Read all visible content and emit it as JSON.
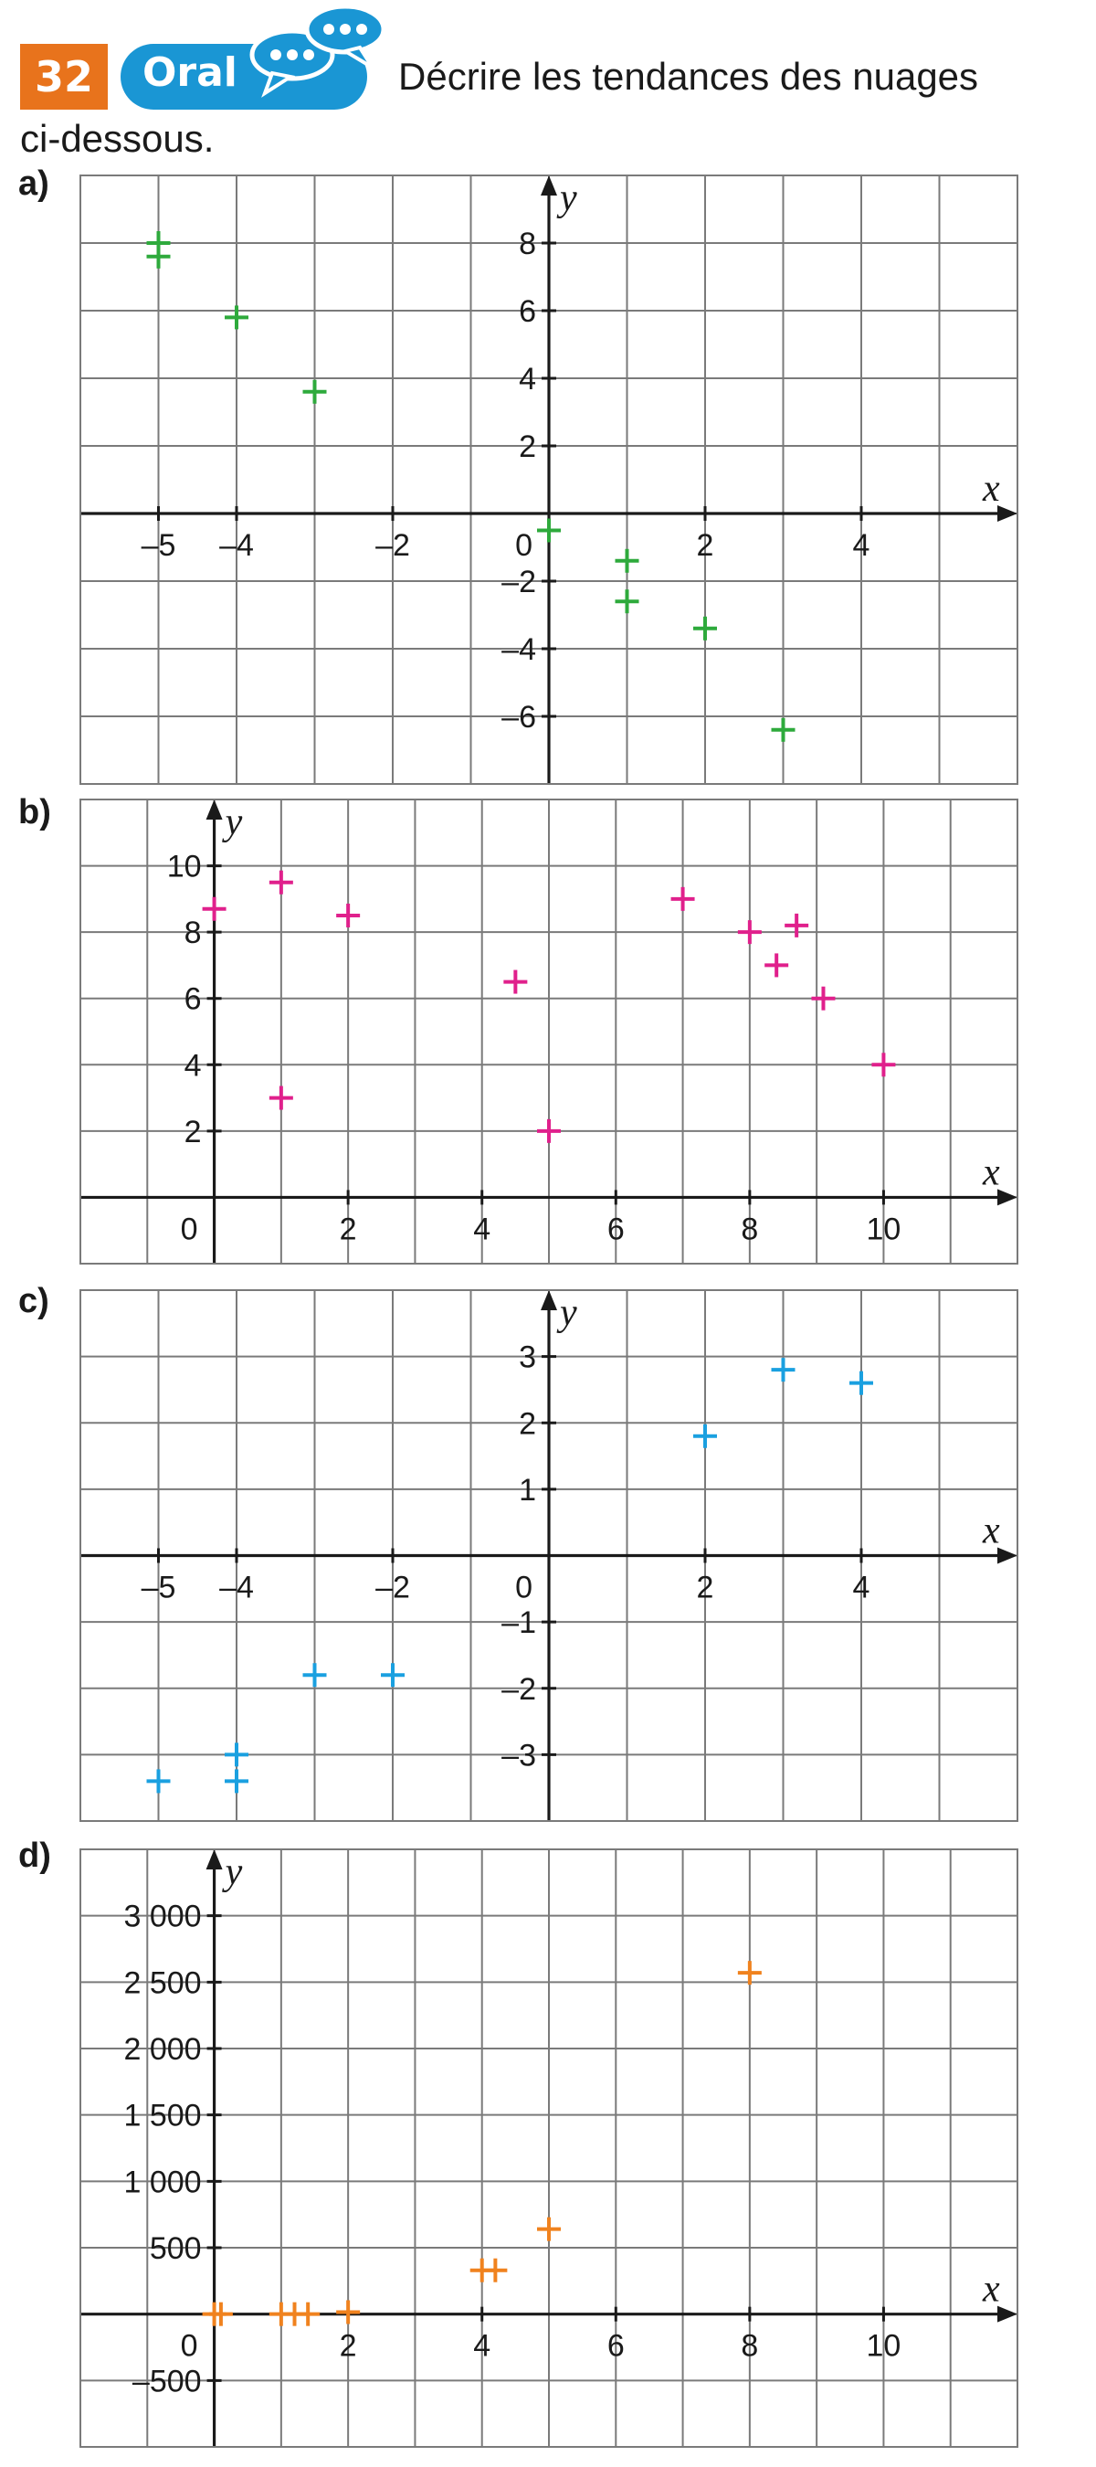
{
  "header": {
    "number": "32",
    "badge": "Oral",
    "instruction_line1": "Décrire les tendances des nuages",
    "instruction_line2": "ci-dessous."
  },
  "colors": {
    "number_badge": "#e8731c",
    "oral_badge": "#1a96d4",
    "a": "#2eaa3c",
    "b": "#e0208c",
    "c": "#1aa0e0",
    "d": "#f0821e"
  },
  "icons": {
    "oral": "speech-bubbles-icon"
  },
  "chart_data": [
    {
      "id": "a",
      "label": "a)",
      "type": "scatter",
      "xlabel": "x",
      "ylabel": "y",
      "xlim": [
        -6,
        6
      ],
      "ylim": [
        -8,
        10
      ],
      "grid": true,
      "xticks": [
        -5,
        -4,
        -2,
        2,
        4
      ],
      "xticklabels": [
        "–5",
        "–4",
        "–2",
        "2",
        "4"
      ],
      "yticks": [
        -6,
        -4,
        -2,
        2,
        4,
        6,
        8
      ],
      "yticklabels": [
        "–6",
        "–4",
        "–2",
        "2",
        "4",
        "6",
        "8"
      ],
      "origin_label": "0",
      "points": [
        [
          -5,
          8
        ],
        [
          -5,
          7.6
        ],
        [
          -4,
          5.8
        ],
        [
          -3,
          3.6
        ],
        [
          0,
          -0.5
        ],
        [
          1,
          -1.4
        ],
        [
          1,
          -2.6
        ],
        [
          2,
          -3.4
        ],
        [
          3,
          -6.4
        ]
      ]
    },
    {
      "id": "b",
      "label": "b)",
      "type": "scatter",
      "xlabel": "x",
      "ylabel": "y",
      "xlim": [
        -2,
        12
      ],
      "ylim": [
        -2,
        12
      ],
      "grid": true,
      "xticks": [
        2,
        4,
        6,
        8,
        10
      ],
      "xticklabels": [
        "2",
        "4",
        "6",
        "8",
        "10"
      ],
      "yticks": [
        2,
        4,
        6,
        8,
        10
      ],
      "yticklabels": [
        "2",
        "4",
        "6",
        "8",
        "10"
      ],
      "origin_label": "0",
      "points": [
        [
          0,
          8.7
        ],
        [
          1,
          9.5
        ],
        [
          2,
          8.5
        ],
        [
          1,
          3
        ],
        [
          4.5,
          6.5
        ],
        [
          5,
          2
        ],
        [
          7,
          9
        ],
        [
          8,
          8
        ],
        [
          8.7,
          8.2
        ],
        [
          8.4,
          7
        ],
        [
          9.1,
          6
        ],
        [
          10,
          4
        ]
      ]
    },
    {
      "id": "c",
      "label": "c)",
      "type": "scatter",
      "xlabel": "x",
      "ylabel": "y",
      "xlim": [
        -6,
        6
      ],
      "ylim": [
        -4,
        4
      ],
      "grid": true,
      "xticks": [
        -5,
        -4,
        -2,
        2,
        4
      ],
      "xticklabels": [
        "–5",
        "–4",
        "–2",
        "2",
        "4"
      ],
      "yticks": [
        -3,
        -2,
        -1,
        1,
        2,
        3
      ],
      "yticklabels": [
        "–3",
        "–2",
        "–1",
        "1",
        "2",
        "3"
      ],
      "origin_label": "0",
      "points": [
        [
          -5,
          -3.4
        ],
        [
          -4,
          -3
        ],
        [
          -4,
          -3.4
        ],
        [
          -3,
          -1.8
        ],
        [
          -2,
          -1.8
        ],
        [
          2,
          1.8
        ],
        [
          3,
          2.8
        ],
        [
          4,
          2.6
        ]
      ]
    },
    {
      "id": "d",
      "label": "d)",
      "type": "scatter",
      "xlabel": "x",
      "ylabel": "y",
      "xlim": [
        -2,
        12
      ],
      "ylim": [
        -1000,
        3500
      ],
      "grid": true,
      "xticks": [
        2,
        4,
        6,
        8,
        10
      ],
      "xticklabels": [
        "2",
        "4",
        "6",
        "8",
        "10"
      ],
      "yticks": [
        -500,
        500,
        1000,
        1500,
        2000,
        2500,
        3000
      ],
      "yticklabels": [
        "–500",
        "500",
        "1 000",
        "1 500",
        "2 000",
        "2 500",
        "3 000"
      ],
      "origin_label": "0",
      "points": [
        [
          0,
          0
        ],
        [
          0.1,
          0
        ],
        [
          1,
          0
        ],
        [
          1.2,
          0
        ],
        [
          1.4,
          0
        ],
        [
          2,
          15
        ],
        [
          4,
          330
        ],
        [
          4.2,
          330
        ],
        [
          5,
          640
        ],
        [
          8,
          2570
        ]
      ]
    }
  ]
}
